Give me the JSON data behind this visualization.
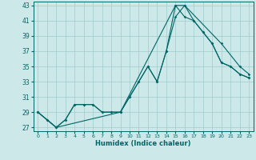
{
  "xlabel": "Humidex (Indice chaleur)",
  "xlim": [
    -0.5,
    23.5
  ],
  "ylim": [
    26.5,
    43.5
  ],
  "yticks": [
    27,
    29,
    31,
    33,
    35,
    37,
    39,
    41,
    43
  ],
  "xticks": [
    0,
    1,
    2,
    3,
    4,
    5,
    6,
    7,
    8,
    9,
    10,
    11,
    12,
    13,
    14,
    15,
    16,
    17,
    18,
    19,
    20,
    21,
    22,
    23
  ],
  "bg_color": "#cce8e8",
  "grid_color": "#a0cccc",
  "line_color": "#006666",
  "lines": [
    {
      "x": [
        0,
        1,
        2,
        3,
        4,
        5,
        6,
        7,
        8,
        9,
        10,
        11,
        12,
        13,
        14,
        15,
        16,
        17,
        18,
        19,
        20,
        21,
        22,
        23
      ],
      "y": [
        29,
        28,
        27,
        28,
        30,
        30,
        30,
        29,
        29,
        29,
        31,
        33,
        35,
        33,
        37,
        43,
        41.5,
        41,
        39.5,
        38,
        35.5,
        35,
        34,
        33.5
      ]
    },
    {
      "x": [
        0,
        1,
        2,
        3,
        4,
        5,
        6,
        7,
        8,
        9,
        10,
        11,
        12,
        13,
        14,
        15,
        16,
        17,
        18,
        19,
        20,
        21,
        22,
        23
      ],
      "y": [
        29,
        28,
        27,
        28,
        30,
        30,
        30,
        29,
        29,
        29,
        31,
        33,
        35,
        33,
        37,
        41.5,
        43,
        41,
        39.5,
        38,
        35.5,
        35,
        34,
        33.5
      ]
    },
    {
      "x": [
        0,
        2,
        9,
        15,
        16,
        20,
        22,
        23
      ],
      "y": [
        29,
        27,
        29,
        43,
        43,
        38,
        35,
        34
      ]
    }
  ]
}
